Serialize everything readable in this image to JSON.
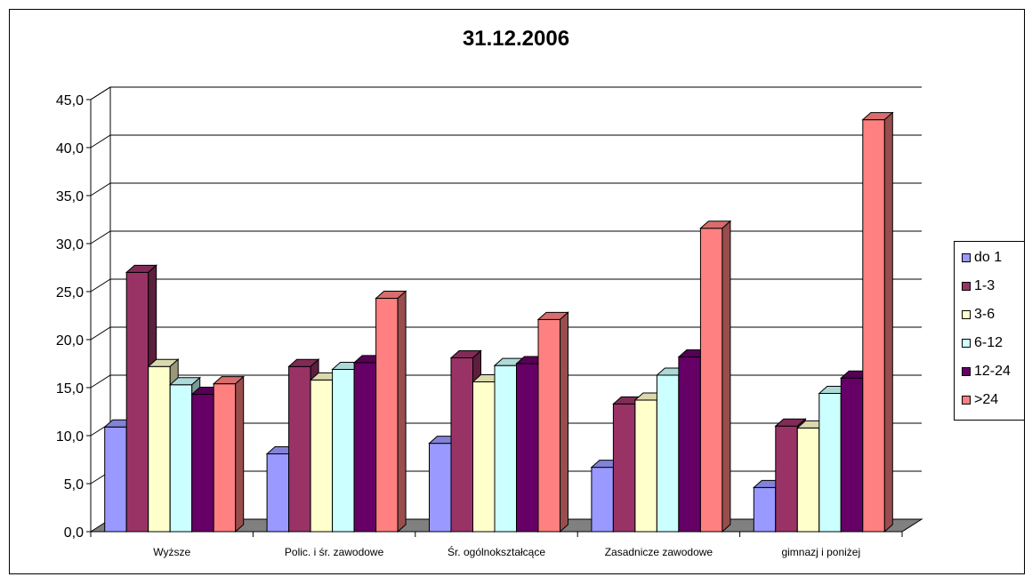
{
  "chart_data": {
    "type": "bar",
    "title": "31.12.2006",
    "categories": [
      "Wyższe",
      "Polic. i śr. zawodowe",
      "Śr. ogólnokształcące",
      "Zasadnicze zawodowe",
      "gimnazj i poniżej"
    ],
    "series": [
      {
        "name": "do 1",
        "color": "#9999ff",
        "values": [
          10.9,
          8.1,
          9.2,
          6.7,
          4.6
        ]
      },
      {
        "name": "1-3",
        "color": "#993366",
        "values": [
          27.0,
          17.2,
          18.1,
          13.3,
          11.0
        ]
      },
      {
        "name": "3-6",
        "color": "#ffffcc",
        "values": [
          17.2,
          15.8,
          15.6,
          13.7,
          10.8
        ]
      },
      {
        "name": "6-12",
        "color": "#ccffff",
        "values": [
          15.3,
          16.9,
          17.3,
          16.3,
          14.4
        ]
      },
      {
        "name": "12-24",
        "color": "#660066",
        "values": [
          14.3,
          17.6,
          17.5,
          18.2,
          16.0
        ]
      },
      {
        "name": ">24",
        "color": "#ff8080",
        "values": [
          15.4,
          24.3,
          22.1,
          31.6,
          42.9
        ]
      }
    ],
    "yticks": [
      "0,0",
      "5,0",
      "10,0",
      "15,0",
      "20,0",
      "25,0",
      "30,0",
      "35,0",
      "40,0",
      "45,0"
    ],
    "ylim": [
      0,
      45
    ],
    "grid": true,
    "legend_position": "right",
    "xlabel": "",
    "ylabel": ""
  }
}
